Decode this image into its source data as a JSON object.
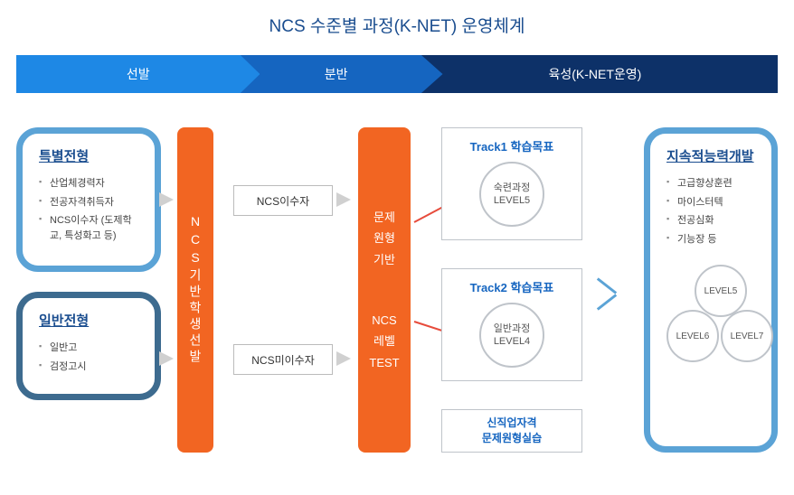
{
  "title": "NCS 수준별 과정(K-NET) 운영체계",
  "stages": {
    "s1": "선발",
    "s2": "분반",
    "s3": "육성(K-NET운영)"
  },
  "special": {
    "title": "특별전형",
    "items": [
      "산업체경력자",
      "전공자격취득자",
      "NCS이수자 (도제학교, 특성화고 등)"
    ]
  },
  "general": {
    "title": "일반전형",
    "items": [
      "일반고",
      "검정고시"
    ]
  },
  "pillar1": "NCS기반학생선발",
  "mbox": {
    "m1": "NCS이수자",
    "m2": "NCS미이수자"
  },
  "pillar2": {
    "top1": "문제",
    "top2": "원형",
    "top3": "기반",
    "bot1": "NCS",
    "bot2": "레벨",
    "bot3": "TEST"
  },
  "track1": {
    "title": "Track1 학습목표",
    "c1": "숙련과정",
    "c2": "LEVEL5"
  },
  "track2": {
    "title": "Track2 학습목표",
    "c1": "일반과정",
    "c2": "LEVEL4"
  },
  "smalltrack": "신직업자격\n문제원형실습",
  "cont": {
    "title": "지속적능력개발",
    "items": [
      "고급향상훈련",
      "마이스터텍",
      "전공심화",
      "기능장 등"
    ],
    "levels": {
      "l1": "LEVEL5",
      "l2": "LEVEL6",
      "l3": "LEVEL7"
    }
  },
  "colors": {
    "stage1": "#1e88e5",
    "stage2": "#1565c0",
    "stage3": "#0d3168",
    "orange": "#f26522",
    "border_light": "#5ba3d6",
    "border_dark": "#3d6b8f",
    "red": "#e74c3c",
    "title": "#1a4d8f"
  }
}
